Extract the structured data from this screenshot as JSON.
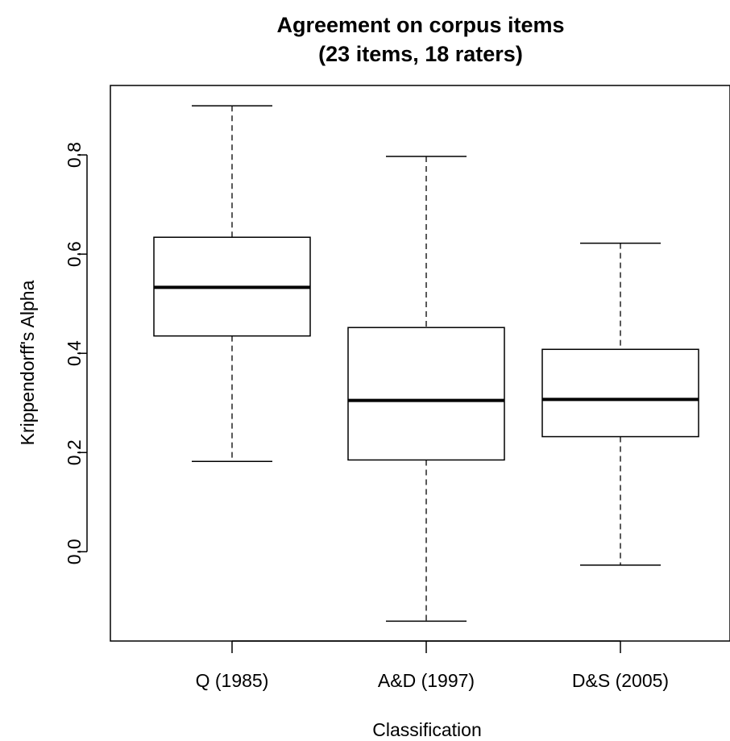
{
  "chart_data": {
    "type": "boxplot",
    "title": [
      "Agreement on corpus items",
      "(23 items, 18 raters)"
    ],
    "xlabel": "Classification",
    "ylabel": "Krippendorff's Alpha",
    "ylim": [
      -0.18,
      0.94
    ],
    "yticks": [
      0.0,
      0.2,
      0.4,
      0.6,
      0.8
    ],
    "ytick_labels": [
      "0.0",
      "0.2",
      "0.4",
      "0.6",
      "0.8"
    ],
    "grid": false,
    "categories": [
      "Q (1985)",
      "A&D (1997)",
      "D&S (2005)"
    ],
    "boxes": [
      {
        "category": "Q (1985)",
        "min": 0.182,
        "q1": 0.435,
        "median": 0.533,
        "q3": 0.634,
        "max": 0.899
      },
      {
        "category": "A&D (1997)",
        "min": -0.14,
        "q1": 0.185,
        "median": 0.305,
        "q3": 0.452,
        "max": 0.797
      },
      {
        "category": "D&S (2005)",
        "min": -0.027,
        "q1": 0.232,
        "median": 0.307,
        "q3": 0.408,
        "max": 0.622
      }
    ]
  }
}
